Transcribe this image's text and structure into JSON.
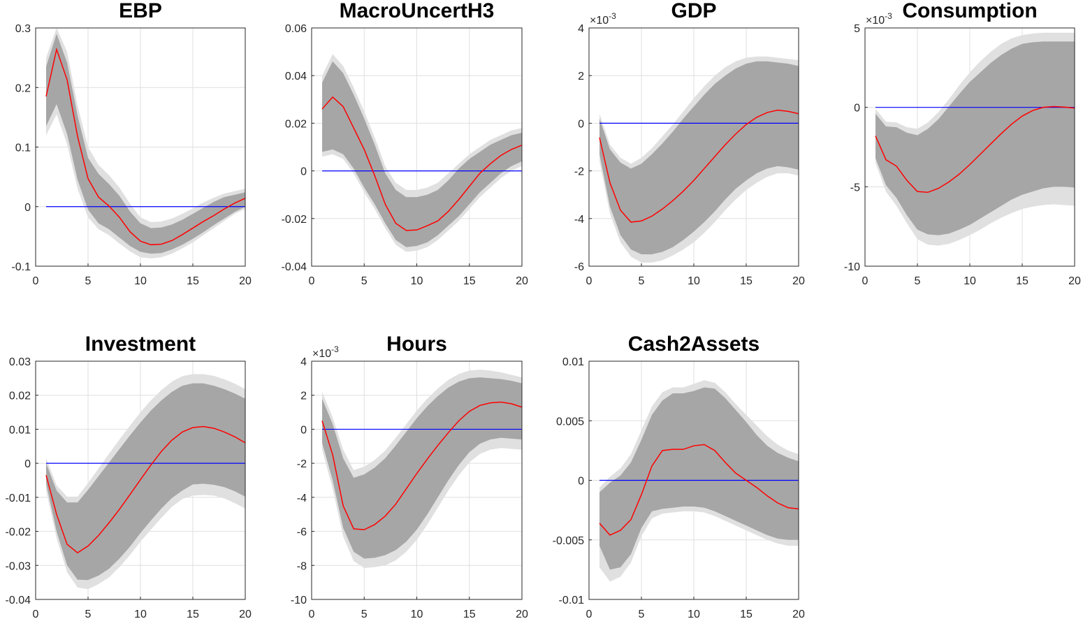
{
  "figure_type": "impulse response grid",
  "colors": {
    "median": "#ff0000",
    "zero_line": "#0000ff",
    "inner_band": "#a6a6a6",
    "outer_band": "#e0e0e0",
    "grid": "#dfdfdf"
  },
  "chart_data": [
    {
      "type": "area",
      "title": "EBP",
      "x": [
        1,
        2,
        3,
        4,
        5,
        6,
        7,
        8,
        9,
        10,
        11,
        12,
        13,
        14,
        15,
        16,
        17,
        18,
        19,
        20
      ],
      "xlim": [
        0,
        20
      ],
      "xticks": [
        0,
        5,
        10,
        15,
        20
      ],
      "ylim": [
        -0.1,
        0.3
      ],
      "yticks": [
        -0.1,
        0,
        0.1,
        0.2,
        0.3
      ],
      "ytick_labels": [
        "-0.1",
        "0",
        "0.1",
        "0.2",
        "0.3"
      ],
      "exponent": "",
      "zero_line": 0,
      "median": [
        0.185,
        0.264,
        0.213,
        0.118,
        0.047,
        0.016,
        0.001,
        -0.018,
        -0.042,
        -0.058,
        -0.064,
        -0.063,
        -0.057,
        -0.047,
        -0.036,
        -0.025,
        -0.015,
        -0.004,
        0.006,
        0.014
      ],
      "outer_lower": [
        0.12,
        0.155,
        0.105,
        0.03,
        -0.018,
        -0.038,
        -0.048,
        -0.062,
        -0.075,
        -0.085,
        -0.087,
        -0.085,
        -0.079,
        -0.07,
        -0.06,
        -0.048,
        -0.036,
        -0.024,
        -0.012,
        -0.004
      ],
      "inner_lower": [
        0.135,
        0.172,
        0.122,
        0.045,
        -0.005,
        -0.028,
        -0.038,
        -0.052,
        -0.066,
        -0.076,
        -0.079,
        -0.078,
        -0.072,
        -0.064,
        -0.054,
        -0.043,
        -0.031,
        -0.02,
        -0.009,
        0
      ],
      "inner_upper": [
        0.235,
        0.29,
        0.242,
        0.153,
        0.082,
        0.055,
        0.038,
        0.018,
        -0.008,
        -0.028,
        -0.036,
        -0.035,
        -0.03,
        -0.022,
        -0.012,
        -0.002,
        0.008,
        0.016,
        0.02,
        0.024
      ],
      "outer_upper": [
        0.25,
        0.3,
        0.26,
        0.17,
        0.1,
        0.07,
        0.053,
        0.032,
        0.005,
        -0.018,
        -0.026,
        -0.025,
        -0.02,
        -0.012,
        -0.003,
        0.007,
        0.015,
        0.022,
        0.026,
        0.03
      ]
    },
    {
      "type": "area",
      "title": "MacroUncertH3",
      "x": [
        1,
        2,
        3,
        4,
        5,
        6,
        7,
        8,
        9,
        10,
        11,
        12,
        13,
        14,
        15,
        16,
        17,
        18,
        19,
        20
      ],
      "xlim": [
        0,
        20
      ],
      "xticks": [
        0,
        5,
        10,
        15,
        20
      ],
      "ylim": [
        -0.04,
        0.06
      ],
      "yticks": [
        -0.04,
        -0.02,
        0,
        0.02,
        0.04,
        0.06
      ],
      "ytick_labels": [
        "-0.04",
        "-0.02",
        "0",
        "0.02",
        "0.04",
        "0.06"
      ],
      "exponent": "",
      "zero_line": 0,
      "median": [
        0.026,
        0.031,
        0.027,
        0.018,
        0.009,
        -0.002,
        -0.014,
        -0.022,
        -0.025,
        -0.0248,
        -0.023,
        -0.021,
        -0.017,
        -0.012,
        -0.0065,
        -0.001,
        0.003,
        0.0065,
        0.009,
        0.0108
      ],
      "outer_lower": [
        0.006,
        0.007,
        0.005,
        -0.001,
        -0.009,
        -0.016,
        -0.024,
        -0.031,
        -0.034,
        -0.0335,
        -0.032,
        -0.029,
        -0.025,
        -0.021,
        -0.016,
        -0.011,
        -0.007,
        -0.003,
        0,
        0.002
      ],
      "inner_lower": [
        0.008,
        0.009,
        0.007,
        0.001,
        -0.007,
        -0.014,
        -0.022,
        -0.029,
        -0.032,
        -0.0315,
        -0.03,
        -0.027,
        -0.023,
        -0.019,
        -0.014,
        -0.009,
        -0.005,
        -0.001,
        0.002,
        0.004
      ],
      "inner_upper": [
        0.037,
        0.046,
        0.041,
        0.032,
        0.022,
        0.011,
        -0.001,
        -0.008,
        -0.011,
        -0.011,
        -0.01,
        -0.008,
        -0.004,
        0.001,
        0.005,
        0.008,
        0.011,
        0.013,
        0.015,
        0.016
      ],
      "outer_upper": [
        0.04,
        0.049,
        0.044,
        0.035,
        0.025,
        0.014,
        0.002,
        -0.005,
        -0.008,
        -0.008,
        -0.007,
        -0.005,
        -0.001,
        0.003,
        0.007,
        0.01,
        0.013,
        0.015,
        0.017,
        0.018
      ]
    },
    {
      "type": "area",
      "title": "GDP",
      "x": [
        1,
        2,
        3,
        4,
        5,
        6,
        7,
        8,
        9,
        10,
        11,
        12,
        13,
        14,
        15,
        16,
        17,
        18,
        19,
        20
      ],
      "xlim": [
        0,
        20
      ],
      "xticks": [
        0,
        5,
        10,
        15,
        20
      ],
      "ylim": [
        -6,
        4
      ],
      "yticks": [
        -6,
        -4,
        -2,
        0,
        2,
        4
      ],
      "ytick_labels": [
        "-6",
        "-4",
        "-2",
        "0",
        "2",
        "4"
      ],
      "exponent": "×10-3",
      "exponent_base": "×10",
      "exponent_power": "-3",
      "zero_line": 0,
      "median": [
        -0.6,
        -2.5,
        -3.65,
        -4.15,
        -4.1,
        -3.9,
        -3.6,
        -3.25,
        -2.85,
        -2.4,
        -1.9,
        -1.4,
        -0.9,
        -0.45,
        -0.05,
        0.25,
        0.45,
        0.55,
        0.5,
        0.4
      ],
      "outer_lower": [
        -1.6,
        -3.8,
        -5,
        -5.6,
        -5.85,
        -5.85,
        -5.75,
        -5.55,
        -5.3,
        -5,
        -4.6,
        -4.15,
        -3.65,
        -3.2,
        -2.8,
        -2.5,
        -2.25,
        -2.1,
        -2.1,
        -2.2
      ],
      "inner_lower": [
        -1.3,
        -3.5,
        -4.7,
        -5.3,
        -5.5,
        -5.5,
        -5.4,
        -5.2,
        -4.9,
        -4.55,
        -4.15,
        -3.7,
        -3.2,
        -2.75,
        -2.4,
        -2.1,
        -1.9,
        -1.8,
        -1.85,
        -1.95
      ],
      "inner_upper": [
        0.2,
        -1.1,
        -1.65,
        -1.9,
        -1.7,
        -1.3,
        -0.85,
        -0.35,
        0.2,
        0.7,
        1.2,
        1.65,
        2,
        2.3,
        2.5,
        2.6,
        2.6,
        2.55,
        2.5,
        2.4
      ],
      "outer_upper": [
        0.4,
        -0.9,
        -1.45,
        -1.7,
        -1.45,
        -1.05,
        -0.55,
        -0.05,
        0.5,
        1.05,
        1.55,
        2,
        2.35,
        2.6,
        2.75,
        2.8,
        2.8,
        2.75,
        2.7,
        2.65
      ]
    },
    {
      "type": "area",
      "title": "Consumption",
      "x": [
        1,
        2,
        3,
        4,
        5,
        6,
        7,
        8,
        9,
        10,
        11,
        12,
        13,
        14,
        15,
        16,
        17,
        18,
        19,
        20
      ],
      "xlim": [
        0,
        20
      ],
      "xticks": [
        0,
        5,
        10,
        15,
        20
      ],
      "ylim": [
        -10,
        5
      ],
      "yticks": [
        -10,
        -5,
        0,
        5
      ],
      "ytick_labels": [
        "-10",
        "-5",
        "0",
        "5"
      ],
      "exponent": "×10-3",
      "exponent_base": "×10",
      "exponent_power": "-3",
      "zero_line": 0,
      "median": [
        -1.8,
        -3.3,
        -3.7,
        -4.6,
        -5.3,
        -5.35,
        -5.1,
        -4.7,
        -4.2,
        -3.6,
        -2.95,
        -2.3,
        -1.65,
        -1.05,
        -0.55,
        -0.2,
        0,
        0.05,
        0.02,
        -0.05
      ],
      "outer_lower": [
        -3.5,
        -5.3,
        -6.2,
        -7.3,
        -8.3,
        -8.65,
        -8.7,
        -8.6,
        -8.35,
        -8.05,
        -7.7,
        -7.3,
        -6.95,
        -6.65,
        -6.4,
        -6.25,
        -6.15,
        -6.1,
        -6.15,
        -6.2
      ],
      "inner_lower": [
        -3.2,
        -4.9,
        -5.7,
        -6.8,
        -7.7,
        -8,
        -8.05,
        -7.95,
        -7.7,
        -7.4,
        -7,
        -6.6,
        -6.2,
        -5.8,
        -5.5,
        -5.3,
        -5.1,
        -5,
        -5,
        -5.05
      ],
      "inner_upper": [
        -0.4,
        -1.2,
        -1.25,
        -1.6,
        -1.75,
        -1.35,
        -0.75,
        0.05,
        0.85,
        1.6,
        2.2,
        2.8,
        3.3,
        3.7,
        4,
        4.1,
        4.15,
        4.15,
        4.15,
        4.15
      ],
      "outer_upper": [
        -0.1,
        -0.9,
        -0.95,
        -1.25,
        -1.35,
        -0.95,
        -0.3,
        0.5,
        1.4,
        2.2,
        2.9,
        3.5,
        4,
        4.35,
        4.55,
        4.65,
        4.7,
        4.7,
        4.7,
        4.7
      ]
    },
    {
      "type": "area",
      "title": "Investment",
      "x": [
        1,
        2,
        3,
        4,
        5,
        6,
        7,
        8,
        9,
        10,
        11,
        12,
        13,
        14,
        15,
        16,
        17,
        18,
        19,
        20
      ],
      "xlim": [
        0,
        20
      ],
      "xticks": [
        0,
        5,
        10,
        15,
        20
      ],
      "ylim": [
        -0.04,
        0.03
      ],
      "yticks": [
        -0.04,
        -0.03,
        -0.02,
        -0.01,
        0,
        0.01,
        0.02,
        0.03
      ],
      "ytick_labels": [
        "-0.04",
        "-0.03",
        "-0.02",
        "-0.01",
        "0",
        "0.01",
        "0.02",
        "0.03"
      ],
      "exponent": "",
      "zero_line": 0,
      "median": [
        -0.0035,
        -0.015,
        -0.0238,
        -0.0263,
        -0.0243,
        -0.0212,
        -0.0175,
        -0.0135,
        -0.0092,
        -0.0048,
        -0.0005,
        0.0035,
        0.0068,
        0.0092,
        0.0105,
        0.0108,
        0.0103,
        0.0092,
        0.0078,
        0.006
      ],
      "outer_lower": [
        -0.008,
        -0.022,
        -0.032,
        -0.0365,
        -0.037,
        -0.0355,
        -0.0335,
        -0.0305,
        -0.027,
        -0.023,
        -0.0195,
        -0.016,
        -0.0128,
        -0.0105,
        -0.0095,
        -0.0093,
        -0.0095,
        -0.0103,
        -0.0117,
        -0.0133
      ],
      "inner_lower": [
        -0.006,
        -0.02,
        -0.03,
        -0.0342,
        -0.0343,
        -0.033,
        -0.031,
        -0.028,
        -0.0245,
        -0.0205,
        -0.0168,
        -0.0133,
        -0.0102,
        -0.008,
        -0.0062,
        -0.006,
        -0.0063,
        -0.007,
        -0.0082,
        -0.0098
      ],
      "inner_upper": [
        0,
        -0.008,
        -0.0115,
        -0.0115,
        -0.0078,
        -0.0038,
        0.0002,
        0.0042,
        0.0082,
        0.012,
        0.0155,
        0.0185,
        0.021,
        0.0228,
        0.0235,
        0.0235,
        0.0228,
        0.0218,
        0.0205,
        0.019
      ],
      "outer_upper": [
        0.0015,
        -0.0065,
        -0.0098,
        -0.0098,
        -0.0058,
        -0.0015,
        0.0028,
        0.007,
        0.011,
        0.015,
        0.0185,
        0.0215,
        0.024,
        0.0256,
        0.0262,
        0.0262,
        0.0257,
        0.0247,
        0.0234,
        0.0218
      ]
    },
    {
      "type": "area",
      "title": "Hours",
      "x": [
        1,
        2,
        3,
        4,
        5,
        6,
        7,
        8,
        9,
        10,
        11,
        12,
        13,
        14,
        15,
        16,
        17,
        18,
        19,
        20
      ],
      "xlim": [
        0,
        20
      ],
      "xticks": [
        0,
        5,
        10,
        15,
        20
      ],
      "ylim": [
        -10,
        4
      ],
      "yticks": [
        -10,
        -8,
        -6,
        -4,
        -2,
        0,
        2,
        4
      ],
      "ytick_labels": [
        "-10",
        "-8",
        "-6",
        "-4",
        "-2",
        "0",
        "2",
        "4"
      ],
      "exponent": "×10-3",
      "exponent_base": "×10",
      "exponent_power": "-3",
      "zero_line": 0,
      "median": [
        0.5,
        -1.5,
        -4.5,
        -5.85,
        -5.9,
        -5.6,
        -5.1,
        -4.4,
        -3.5,
        -2.6,
        -1.75,
        -0.95,
        -0.2,
        0.5,
        1.05,
        1.4,
        1.55,
        1.6,
        1.5,
        1.3
      ],
      "outer_lower": [
        -1.2,
        -3.5,
        -6.3,
        -7.75,
        -8.15,
        -8.1,
        -8,
        -7.7,
        -7.2,
        -6.5,
        -5.6,
        -4.6,
        -3.6,
        -2.7,
        -1.95,
        -1.45,
        -1.2,
        -1.1,
        -1.15,
        -1.2
      ],
      "inner_lower": [
        -0.8,
        -3,
        -5.8,
        -7.2,
        -7.6,
        -7.55,
        -7.4,
        -7.1,
        -6.6,
        -5.9,
        -5,
        -4,
        -3,
        -2.1,
        -1.35,
        -0.85,
        -0.6,
        -0.5,
        -0.55,
        -0.6
      ],
      "inner_upper": [
        1.8,
        0.3,
        -1.7,
        -2.85,
        -2.65,
        -2.25,
        -1.7,
        -0.95,
        -0.15,
        0.65,
        1.35,
        1.95,
        2.45,
        2.8,
        3,
        3.05,
        3,
        2.95,
        2.85,
        2.7
      ],
      "outer_upper": [
        2.2,
        0.7,
        -1.2,
        -2.4,
        -2.2,
        -1.8,
        -1.25,
        -0.5,
        0.3,
        1.1,
        1.8,
        2.4,
        2.9,
        3.25,
        3.45,
        3.5,
        3.45,
        3.35,
        3.2,
        3.05
      ]
    },
    {
      "type": "area",
      "title": "Cash2Assets",
      "x": [
        1,
        2,
        3,
        4,
        5,
        6,
        7,
        8,
        9,
        10,
        11,
        12,
        13,
        14,
        15,
        16,
        17,
        18,
        19,
        20
      ],
      "xlim": [
        0,
        20
      ],
      "xticks": [
        0,
        5,
        10,
        15,
        20
      ],
      "ylim": [
        -0.01,
        0.01
      ],
      "yticks": [
        -0.01,
        -0.005,
        0,
        0.005,
        0.01
      ],
      "ytick_labels": [
        "-0.01",
        "-0.005",
        "0",
        "0.005",
        "0.01"
      ],
      "exponent": "",
      "zero_line": 0,
      "median": [
        -0.0036,
        -0.0046,
        -0.0042,
        -0.0033,
        -0.0012,
        0.0012,
        0.0025,
        0.0026,
        0.0026,
        0.0029,
        0.003,
        0.0025,
        0.0015,
        0.0006,
        0,
        -0.0006,
        -0.0013,
        -0.0019,
        -0.0023,
        -0.0024
      ],
      "outer_lower": [
        -0.0073,
        -0.0085,
        -0.0081,
        -0.0069,
        -0.0047,
        -0.0032,
        -0.0028,
        -0.0027,
        -0.0026,
        -0.0026,
        -0.0027,
        -0.003,
        -0.0034,
        -0.0038,
        -0.0042,
        -0.0046,
        -0.005,
        -0.0053,
        -0.0055,
        -0.0055
      ],
      "inner_lower": [
        -0.0055,
        -0.0075,
        -0.0073,
        -0.0062,
        -0.004,
        -0.0026,
        -0.0024,
        -0.0023,
        -0.0022,
        -0.0022,
        -0.0023,
        -0.0026,
        -0.003,
        -0.0034,
        -0.0038,
        -0.0042,
        -0.0046,
        -0.0049,
        -0.005,
        -0.005
      ],
      "inner_upper": [
        -0.001,
        -0.0002,
        0.0004,
        0.0015,
        0.0034,
        0.0055,
        0.0067,
        0.0073,
        0.0073,
        0.0075,
        0.0078,
        0.0077,
        0.0069,
        0.0059,
        0.0049,
        0.0038,
        0.0029,
        0.0023,
        0.0019,
        0.0016
      ],
      "outer_upper": [
        -0.0006,
        0.0003,
        0.001,
        0.0022,
        0.0042,
        0.0062,
        0.0074,
        0.0078,
        0.0078,
        0.0081,
        0.0084,
        0.0082,
        0.0074,
        0.0064,
        0.0055,
        0.0046,
        0.0037,
        0.003,
        0.0025,
        0.0022
      ]
    }
  ]
}
